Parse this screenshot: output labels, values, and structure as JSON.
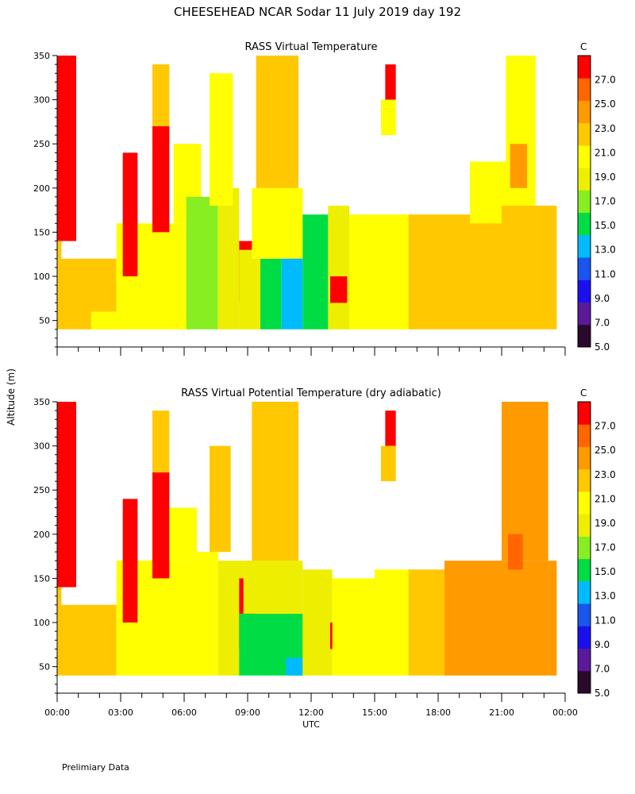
{
  "page": {
    "title": "CHEESEHEAD   NCAR Sodar   11 July 2019   day 192",
    "footer": "Prelimiary Data",
    "ylabel": "Altitude (m)",
    "xlabel": "UTC"
  },
  "chart_data": [
    {
      "type": "heatmap",
      "title": "RASS Virtual Temperature",
      "colorbar_unit": "C",
      "x_ticks": [
        "00:00",
        "03:00",
        "06:00",
        "09:00",
        "12:00",
        "15:00",
        "18:00",
        "21:00",
        "00:00"
      ],
      "x_range_hours": [
        0,
        24
      ],
      "y_ticks": [
        50,
        100,
        150,
        200,
        250,
        300,
        350
      ],
      "y_range_m": [
        20,
        350
      ],
      "colorbar_ticks": [
        "5.0",
        "7.0",
        "9.0",
        "11.0",
        "13.0",
        "15.0",
        "17.0",
        "19.0",
        "21.0",
        "23.0",
        "25.0",
        "27.0"
      ],
      "colorbar_colors": [
        "#2a0a2a",
        "#5a1a99",
        "#1a10ee",
        "#1a55ee",
        "#00bbff",
        "#00dd44",
        "#88ee22",
        "#eeee00",
        "#ffff00",
        "#ffc800",
        "#ff9a00",
        "#ff6600",
        "#ff0000"
      ],
      "regions": [
        {
          "x0": 0.0,
          "x1": 2.8,
          "y0": 40,
          "y1": 120,
          "value": 22
        },
        {
          "x0": 0.0,
          "x1": 0.2,
          "y0": 120,
          "y1": 140,
          "value": 22
        },
        {
          "x0": 0.0,
          "x1": 0.9,
          "y0": 140,
          "y1": 350,
          "value": 28
        },
        {
          "x0": 1.6,
          "x1": 3.1,
          "y0": 40,
          "y1": 60,
          "value": 20
        },
        {
          "x0": 2.8,
          "x1": 6.3,
          "y0": 40,
          "y1": 160,
          "value": 20
        },
        {
          "x0": 3.1,
          "x1": 3.8,
          "y0": 100,
          "y1": 240,
          "value": 28
        },
        {
          "x0": 4.5,
          "x1": 5.3,
          "y0": 150,
          "y1": 270,
          "value": 28
        },
        {
          "x0": 4.5,
          "x1": 5.3,
          "y0": 270,
          "y1": 340,
          "value": 23
        },
        {
          "x0": 5.5,
          "x1": 6.8,
          "y0": 160,
          "y1": 250,
          "value": 20
        },
        {
          "x0": 6.1,
          "x1": 7.6,
          "y0": 40,
          "y1": 190,
          "value": 17
        },
        {
          "x0": 7.6,
          "x1": 8.6,
          "y0": 40,
          "y1": 200,
          "value": 18
        },
        {
          "x0": 7.2,
          "x1": 8.3,
          "y0": 180,
          "y1": 330,
          "value": 21
        },
        {
          "x0": 8.6,
          "x1": 9.4,
          "y0": 70,
          "y1": 140,
          "value": 28
        },
        {
          "x0": 8.6,
          "x1": 9.6,
          "y0": 40,
          "y1": 130,
          "value": 18
        },
        {
          "x0": 9.6,
          "x1": 10.6,
          "y0": 40,
          "y1": 120,
          "value": 16
        },
        {
          "x0": 10.6,
          "x1": 11.6,
          "y0": 40,
          "y1": 130,
          "value": 14
        },
        {
          "x0": 9.2,
          "x1": 11.6,
          "y0": 120,
          "y1": 200,
          "value": 20
        },
        {
          "x0": 9.4,
          "x1": 11.4,
          "y0": 200,
          "y1": 350,
          "value": 22
        },
        {
          "x0": 11.6,
          "x1": 12.8,
          "y0": 40,
          "y1": 170,
          "value": 16
        },
        {
          "x0": 12.8,
          "x1": 13.8,
          "y0": 40,
          "y1": 180,
          "value": 18
        },
        {
          "x0": 12.9,
          "x1": 13.7,
          "y0": 70,
          "y1": 100,
          "value": 28
        },
        {
          "x0": 13.8,
          "x1": 16.6,
          "y0": 40,
          "y1": 170,
          "value": 20
        },
        {
          "x0": 15.5,
          "x1": 16.0,
          "y0": 300,
          "y1": 340,
          "value": 28
        },
        {
          "x0": 15.3,
          "x1": 16.0,
          "y0": 260,
          "y1": 300,
          "value": 21
        },
        {
          "x0": 16.6,
          "x1": 18.0,
          "y0": 40,
          "y1": 170,
          "value": 22
        },
        {
          "x0": 18.0,
          "x1": 21.0,
          "y0": 40,
          "y1": 170,
          "value": 23
        },
        {
          "x0": 19.5,
          "x1": 21.5,
          "y0": 160,
          "y1": 230,
          "value": 20
        },
        {
          "x0": 21.0,
          "x1": 23.6,
          "y0": 40,
          "y1": 180,
          "value": 23
        },
        {
          "x0": 21.2,
          "x1": 22.6,
          "y0": 180,
          "y1": 350,
          "value": 21
        },
        {
          "x0": 21.4,
          "x1": 22.2,
          "y0": 200,
          "y1": 250,
          "value": 24
        }
      ]
    },
    {
      "type": "heatmap",
      "title": "RASS Virtual Potential Temperature (dry adiabatic)",
      "colorbar_unit": "C",
      "x_ticks": [
        "00:00",
        "03:00",
        "06:00",
        "09:00",
        "12:00",
        "15:00",
        "18:00",
        "21:00",
        "00:00"
      ],
      "x_range_hours": [
        0,
        24
      ],
      "y_ticks": [
        50,
        100,
        150,
        200,
        250,
        300,
        350
      ],
      "y_range_m": [
        20,
        350
      ],
      "colorbar_ticks": [
        "5.0",
        "7.0",
        "9.0",
        "11.0",
        "13.0",
        "15.0",
        "17.0",
        "19.0",
        "21.0",
        "23.0",
        "25.0",
        "27.0"
      ],
      "colorbar_colors": [
        "#2a0a2a",
        "#5a1a99",
        "#1a10ee",
        "#1a55ee",
        "#00bbff",
        "#00dd44",
        "#88ee22",
        "#eeee00",
        "#ffff00",
        "#ffc800",
        "#ff9a00",
        "#ff6600",
        "#ff0000"
      ],
      "regions": [
        {
          "x0": 0.0,
          "x1": 2.8,
          "y0": 40,
          "y1": 120,
          "value": 22
        },
        {
          "x0": 0.0,
          "x1": 0.2,
          "y0": 120,
          "y1": 140,
          "value": 22
        },
        {
          "x0": 0.0,
          "x1": 0.9,
          "y0": 140,
          "y1": 350,
          "value": 28
        },
        {
          "x0": 2.8,
          "x1": 6.6,
          "y0": 40,
          "y1": 170,
          "value": 20
        },
        {
          "x0": 3.1,
          "x1": 3.8,
          "y0": 100,
          "y1": 240,
          "value": 28
        },
        {
          "x0": 4.5,
          "x1": 5.3,
          "y0": 150,
          "y1": 270,
          "value": 28
        },
        {
          "x0": 4.5,
          "x1": 5.3,
          "y0": 270,
          "y1": 340,
          "value": 23
        },
        {
          "x0": 5.3,
          "x1": 6.6,
          "y0": 170,
          "y1": 230,
          "value": 21
        },
        {
          "x0": 6.6,
          "x1": 7.6,
          "y0": 40,
          "y1": 180,
          "value": 20
        },
        {
          "x0": 7.2,
          "x1": 8.2,
          "y0": 180,
          "y1": 300,
          "value": 22
        },
        {
          "x0": 7.6,
          "x1": 8.8,
          "y0": 40,
          "y1": 170,
          "value": 18
        },
        {
          "x0": 8.6,
          "x1": 9.4,
          "y0": 70,
          "y1": 150,
          "value": 28
        },
        {
          "x0": 8.6,
          "x1": 11.6,
          "y0": 40,
          "y1": 110,
          "value": 16
        },
        {
          "x0": 10.8,
          "x1": 11.6,
          "y0": 40,
          "y1": 60,
          "value": 14
        },
        {
          "x0": 8.8,
          "x1": 11.6,
          "y0": 110,
          "y1": 170,
          "value": 19
        },
        {
          "x0": 9.2,
          "x1": 11.4,
          "y0": 170,
          "y1": 350,
          "value": 23
        },
        {
          "x0": 11.6,
          "x1": 13.0,
          "y0": 40,
          "y1": 160,
          "value": 18
        },
        {
          "x0": 12.9,
          "x1": 13.7,
          "y0": 70,
          "y1": 100,
          "value": 28
        },
        {
          "x0": 13.0,
          "x1": 15.0,
          "y0": 40,
          "y1": 150,
          "value": 21
        },
        {
          "x0": 15.0,
          "x1": 16.6,
          "y0": 40,
          "y1": 160,
          "value": 20
        },
        {
          "x0": 15.5,
          "x1": 16.0,
          "y0": 300,
          "y1": 340,
          "value": 28
        },
        {
          "x0": 15.3,
          "x1": 16.0,
          "y0": 260,
          "y1": 300,
          "value": 23
        },
        {
          "x0": 16.6,
          "x1": 18.3,
          "y0": 40,
          "y1": 160,
          "value": 22
        },
        {
          "x0": 18.3,
          "x1": 23.6,
          "y0": 40,
          "y1": 170,
          "value": 24
        },
        {
          "x0": 21.0,
          "x1": 23.2,
          "y0": 170,
          "y1": 350,
          "value": 24
        },
        {
          "x0": 21.3,
          "x1": 22.0,
          "y0": 160,
          "y1": 200,
          "value": 26
        }
      ]
    }
  ]
}
